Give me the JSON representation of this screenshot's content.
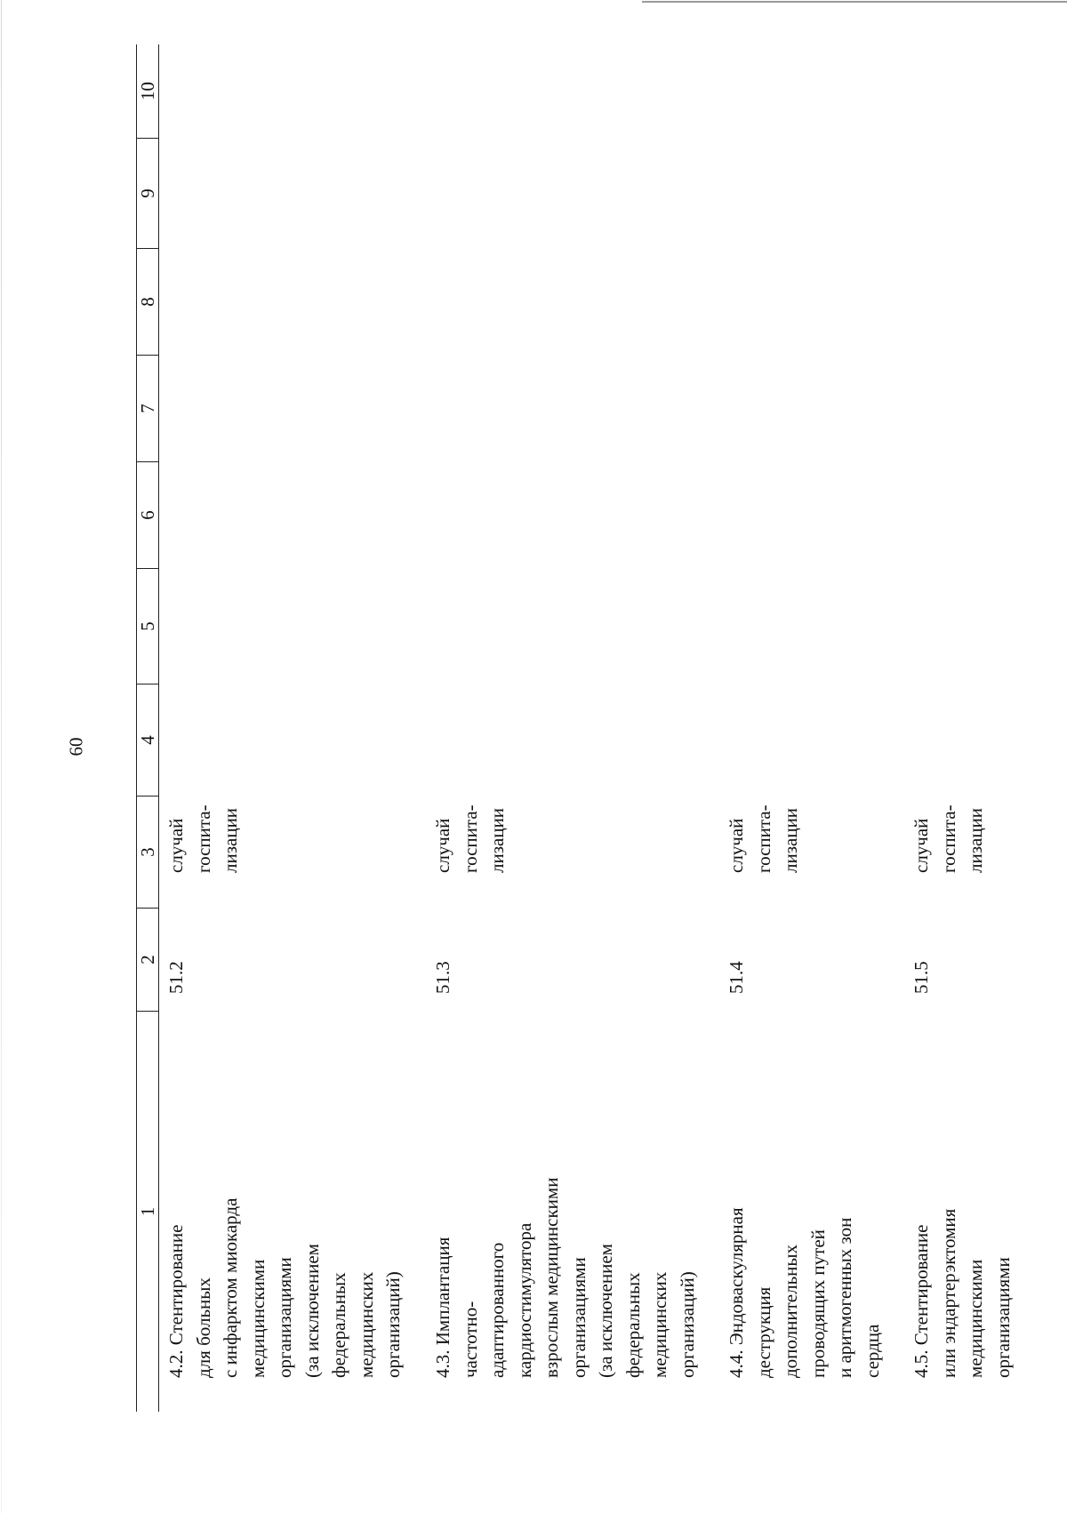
{
  "page": {
    "number": "60"
  },
  "table": {
    "columns": [
      "1",
      "2",
      "3",
      "4",
      "5",
      "6",
      "7",
      "8",
      "9",
      "10"
    ],
    "rows": [
      {
        "name": [
          "4.2. Стентирование",
          "для больных",
          "с инфарктом миокарда",
          "медицинскими",
          "организациями",
          "(за исключением",
          "федеральных",
          "медицинских",
          "организаций)"
        ],
        "code": "51.2",
        "unit": [
          "случай",
          "госпита-",
          "лизации"
        ]
      },
      {
        "name": [
          "4.3. Имплантация",
          "частотно-",
          "адаптированного",
          "кардиостимулятора",
          "взрослым медицинскими",
          "организациями",
          "(за исключением",
          "федеральных",
          "медицинских",
          "организаций)"
        ],
        "code": "51.3",
        "unit": [
          "случай",
          "госпита-",
          "лизации"
        ]
      },
      {
        "name": [
          "4.4. Эндоваскулярная",
          "деструкция",
          "дополнительных",
          "проводящих путей",
          "и аритмогенных зон",
          "сердца"
        ],
        "code": "51.4",
        "unit": [
          "случай",
          "госпита-",
          "лизации"
        ]
      },
      {
        "name": [
          "4.5. Стентирование",
          "или эндартерэктомия",
          "медицинскими",
          "организациями"
        ],
        "code": "51.5",
        "unit": [
          "случай",
          "госпита-",
          "лизации"
        ]
      }
    ]
  }
}
